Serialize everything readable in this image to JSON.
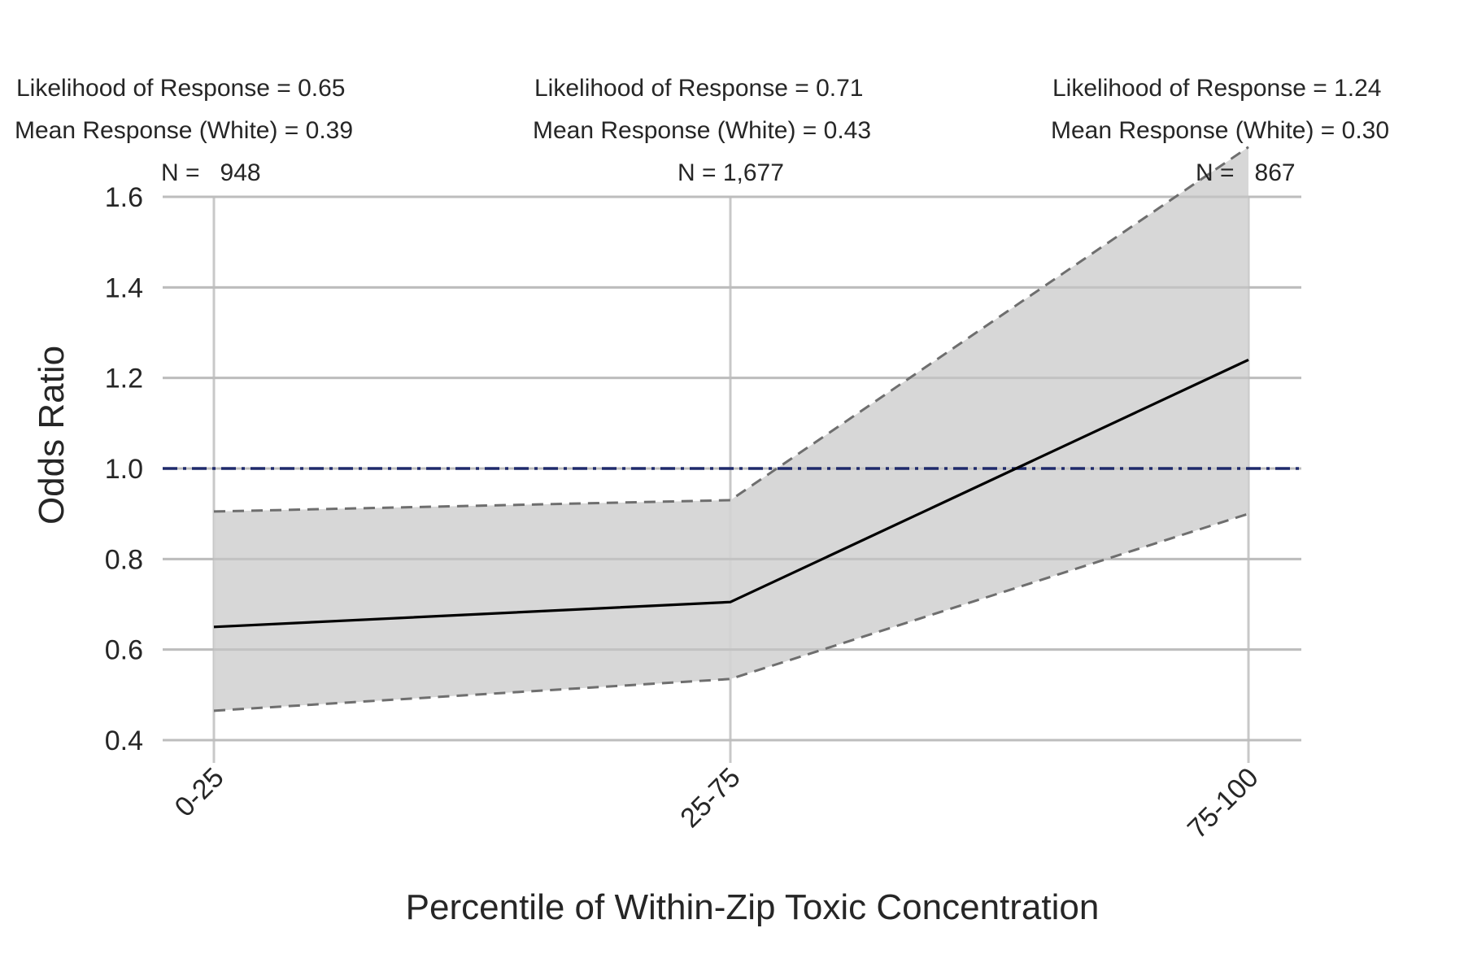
{
  "chart_data": {
    "type": "line",
    "xlabel": "Percentile of Within-Zip Toxic Concentration",
    "ylabel": "Odds Ratio",
    "categories": [
      "0-25",
      "25-75",
      "75-100"
    ],
    "ylim": [
      0.4,
      1.6
    ],
    "yticks": [
      "0.4",
      "0.6",
      "0.8",
      "1.0",
      "1.2",
      "1.4",
      "1.6"
    ],
    "grid": true,
    "reference_line": {
      "y": 1.0,
      "style": "dash-dot",
      "color": "#1f2a6b"
    },
    "series": [
      {
        "values": [
          0.65,
          0.705,
          1.24
        ],
        "lower": [
          0.465,
          0.535,
          0.9
        ],
        "upper": [
          0.905,
          0.93,
          1.71
        ],
        "color": "#000000",
        "band_color": "#d3d3d3",
        "bound_color": "#6e6e6e"
      }
    ],
    "annotations": [
      {
        "likelihood": "Likelihood of Response = 0.65",
        "mean_response": "Mean Response (White) = 0.39",
        "n": "N =   948"
      },
      {
        "likelihood": "Likelihood of Response = 0.71",
        "mean_response": "Mean Response (White) = 0.43",
        "n": "N = 1,677"
      },
      {
        "likelihood": "Likelihood of Response = 1.24",
        "mean_response": "Mean Response (White) = 0.30",
        "n": "N =   867"
      }
    ]
  }
}
